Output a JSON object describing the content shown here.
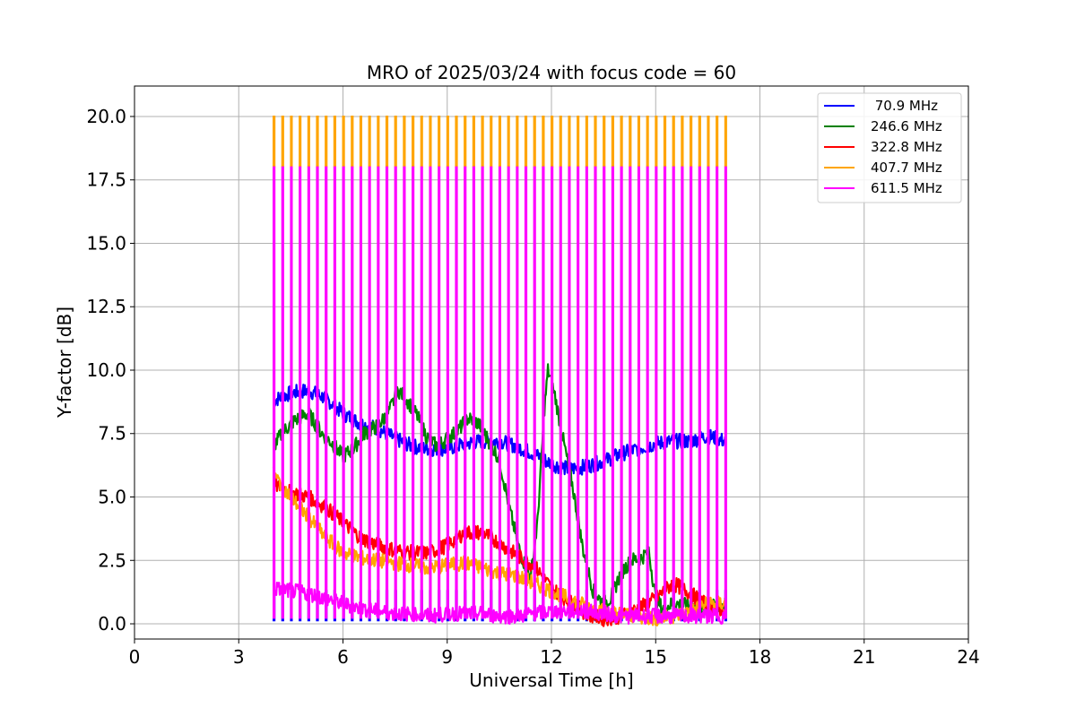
{
  "chart_data": {
    "type": "line",
    "title": "MRO of 2025/03/24 with focus code = 60",
    "xlabel": "Universal Time [h]",
    "ylabel": "Y-factor [dB]",
    "xlim": [
      0,
      24
    ],
    "ylim": [
      -0.6,
      21.2
    ],
    "xticks": [
      0,
      3,
      6,
      9,
      12,
      15,
      18,
      21,
      24
    ],
    "xtick_labels": [
      "0",
      "3",
      "6",
      "9",
      "12",
      "15",
      "18",
      "21",
      "24"
    ],
    "yticks": [
      0,
      2.5,
      5,
      7.5,
      10,
      12.5,
      15,
      17.5,
      20
    ],
    "ytick_labels": [
      "0.0",
      "2.5",
      "5.0",
      "7.5",
      "10.0",
      "12.5",
      "15.0",
      "17.5",
      "20.0"
    ],
    "grid": true,
    "legend_position": "top-right",
    "data_start_h": 4.0,
    "data_end_h": 17.0,
    "spike_interval_h": 0.25,
    "series": [
      {
        "name": " 70.9 MHz",
        "color": "#0000ff",
        "x": [
          4.0,
          4.5,
          5.0,
          5.5,
          6.0,
          6.5,
          7.0,
          7.5,
          8.0,
          8.5,
          9.0,
          9.5,
          10.0,
          10.5,
          11.0,
          11.5,
          12.0,
          12.5,
          13.0,
          13.5,
          14.0,
          14.5,
          15.0,
          15.5,
          16.0,
          16.5,
          17.0
        ],
        "y": [
          8.8,
          9.1,
          9.2,
          8.9,
          8.3,
          7.9,
          7.7,
          7.3,
          7.0,
          6.9,
          6.9,
          7.1,
          7.2,
          7.2,
          7.0,
          6.7,
          6.3,
          6.1,
          6.2,
          6.4,
          6.7,
          6.9,
          7.1,
          7.2,
          7.2,
          7.4,
          7.2
        ],
        "spike_base": 0.1,
        "spike_peak": 1.3
      },
      {
        "name": "246.6 MHz",
        "color": "#008000",
        "x": [
          4.0,
          4.3,
          4.6,
          5.0,
          5.4,
          5.7,
          6.0,
          6.3,
          6.6,
          7.0,
          7.3,
          7.6,
          7.8,
          8.1,
          8.4,
          8.7,
          9.0,
          9.3,
          9.6,
          9.9,
          10.2,
          10.5,
          10.8,
          11.1,
          11.4,
          11.6,
          11.8,
          11.9,
          12.1,
          12.3,
          12.6,
          12.9,
          13.2,
          13.5,
          13.7,
          14.0,
          14.3,
          14.6,
          14.8,
          15.0,
          15.2,
          15.5,
          16.0,
          16.5,
          17.0
        ],
        "y": [
          7.0,
          7.6,
          8.0,
          8.3,
          7.5,
          7.1,
          6.6,
          6.9,
          7.5,
          7.8,
          8.3,
          9.2,
          8.9,
          8.3,
          7.4,
          7.0,
          7.3,
          7.6,
          8.1,
          7.9,
          7.2,
          6.5,
          4.5,
          2.8,
          1.8,
          4.0,
          8.5,
          10.0,
          9.0,
          7.5,
          5.5,
          3.0,
          1.3,
          0.8,
          1.0,
          2.0,
          2.5,
          2.6,
          2.9,
          1.0,
          0.6,
          0.8,
          0.7,
          0.6,
          0.8
        ]
      },
      {
        "name": "322.8 MHz",
        "color": "#ff0000",
        "x": [
          4.0,
          4.5,
          5.0,
          5.5,
          6.0,
          6.5,
          7.0,
          7.5,
          8.0,
          8.5,
          9.0,
          9.5,
          10.0,
          10.5,
          11.0,
          11.5,
          12.0,
          12.5,
          13.0,
          13.5,
          14.0,
          14.5,
          15.0,
          15.5,
          16.0,
          16.5,
          17.0
        ],
        "y": [
          5.5,
          5.2,
          5.0,
          4.6,
          4.0,
          3.4,
          3.1,
          2.9,
          2.8,
          2.8,
          3.1,
          3.6,
          3.6,
          3.2,
          2.7,
          2.3,
          1.4,
          0.9,
          0.4,
          0.2,
          0.3,
          0.6,
          1.0,
          1.6,
          1.2,
          0.7,
          0.5
        ]
      },
      {
        "name": "407.7 MHz",
        "color": "#ffa500",
        "x": [
          4.0,
          4.5,
          5.0,
          5.5,
          6.0,
          6.5,
          7.0,
          7.5,
          8.0,
          8.5,
          9.0,
          9.5,
          10.0,
          10.5,
          11.0,
          11.5,
          12.0,
          12.5,
          13.0,
          13.5,
          14.0,
          14.5,
          15.0,
          15.5,
          16.0,
          16.5,
          17.0
        ],
        "y": [
          5.9,
          5.0,
          4.2,
          3.4,
          2.8,
          2.6,
          2.5,
          2.4,
          2.3,
          2.2,
          2.3,
          2.4,
          2.2,
          2.0,
          1.9,
          1.6,
          1.3,
          1.0,
          0.7,
          0.5,
          0.4,
          0.3,
          0.2,
          0.3,
          0.5,
          0.8,
          0.8
        ],
        "spike_base": 18.0,
        "spike_peak": 20.0
      },
      {
        "name": "611.5 MHz",
        "color": "#ff00ff",
        "x": [
          4.0,
          4.5,
          5.0,
          5.5,
          6.0,
          6.5,
          7.0,
          7.5,
          8.0,
          8.5,
          9.0,
          9.5,
          10.0,
          10.5,
          11.0,
          11.5,
          12.0,
          12.5,
          13.0,
          13.5,
          14.0,
          14.5,
          15.0,
          15.5,
          16.0,
          16.5,
          17.0
        ],
        "y": [
          1.4,
          1.3,
          1.2,
          1.0,
          0.8,
          0.6,
          0.5,
          0.4,
          0.4,
          0.3,
          0.4,
          0.4,
          0.4,
          0.3,
          0.3,
          0.4,
          0.5,
          0.5,
          0.5,
          0.4,
          0.3,
          0.3,
          0.3,
          0.3,
          0.3,
          0.3,
          0.3
        ],
        "spike_base": 0.2,
        "spike_peak": 18.0
      }
    ]
  }
}
